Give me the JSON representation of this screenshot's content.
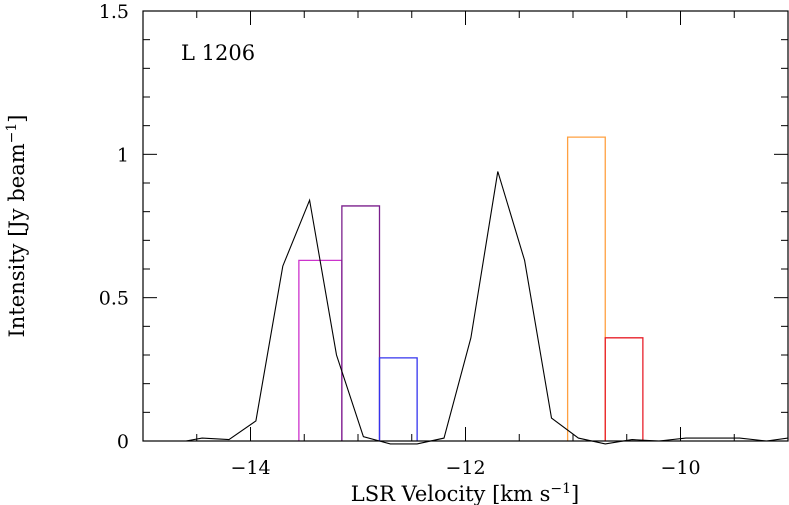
{
  "chart_data": {
    "type": "line",
    "title": "",
    "annotation": "L 1206",
    "xlabel": {
      "main": "LSR Velocity [km s",
      "sup": "−1",
      "end": "]"
    },
    "ylabel": {
      "main": "Intensity [Jy beam",
      "sup": "−1",
      "end": "]"
    },
    "xlim": [
      -15.0,
      -9.0
    ],
    "ylim": [
      0,
      1.5
    ],
    "x_ticks": [
      -14,
      -12,
      -10
    ],
    "x_tick_labels": [
      "−14",
      "−12",
      "−10"
    ],
    "y_ticks": [
      0,
      0.5,
      1,
      1.5
    ],
    "y_tick_labels": [
      "0",
      "0.5",
      "1",
      "1.5"
    ],
    "spectrum": {
      "x": [
        -14.6,
        -14.45,
        -14.2,
        -13.95,
        -13.7,
        -13.45,
        -13.2,
        -12.95,
        -12.7,
        -12.45,
        -12.2,
        -11.95,
        -11.7,
        -11.45,
        -11.2,
        -10.95,
        -10.7,
        -10.45,
        -10.2,
        -9.95,
        -9.7,
        -9.45,
        -9.2,
        -9.0
      ],
      "y": [
        0.0,
        0.01,
        0.005,
        0.07,
        0.61,
        0.84,
        0.3,
        0.015,
        -0.01,
        -0.01,
        0.01,
        0.36,
        0.94,
        0.63,
        0.08,
        0.01,
        -0.01,
        0.005,
        0.0,
        0.01,
        0.01,
        0.01,
        0.0,
        0.01
      ],
      "color": "#000000"
    },
    "histograms": [
      {
        "x_start": -13.55,
        "x_end": -13.15,
        "height": 0.63,
        "color": "#cc33cc"
      },
      {
        "x_start": -13.15,
        "x_end": -12.8,
        "height": 0.82,
        "color": "#7a1f8c"
      },
      {
        "x_start": -12.8,
        "x_end": -12.45,
        "height": 0.29,
        "color": "#3333ee"
      },
      {
        "x_start": -11.05,
        "x_end": -10.7,
        "height": 1.06,
        "color": "#ffa040"
      },
      {
        "x_start": -10.7,
        "x_end": -10.35,
        "height": 0.36,
        "color": "#e8202a"
      }
    ]
  }
}
